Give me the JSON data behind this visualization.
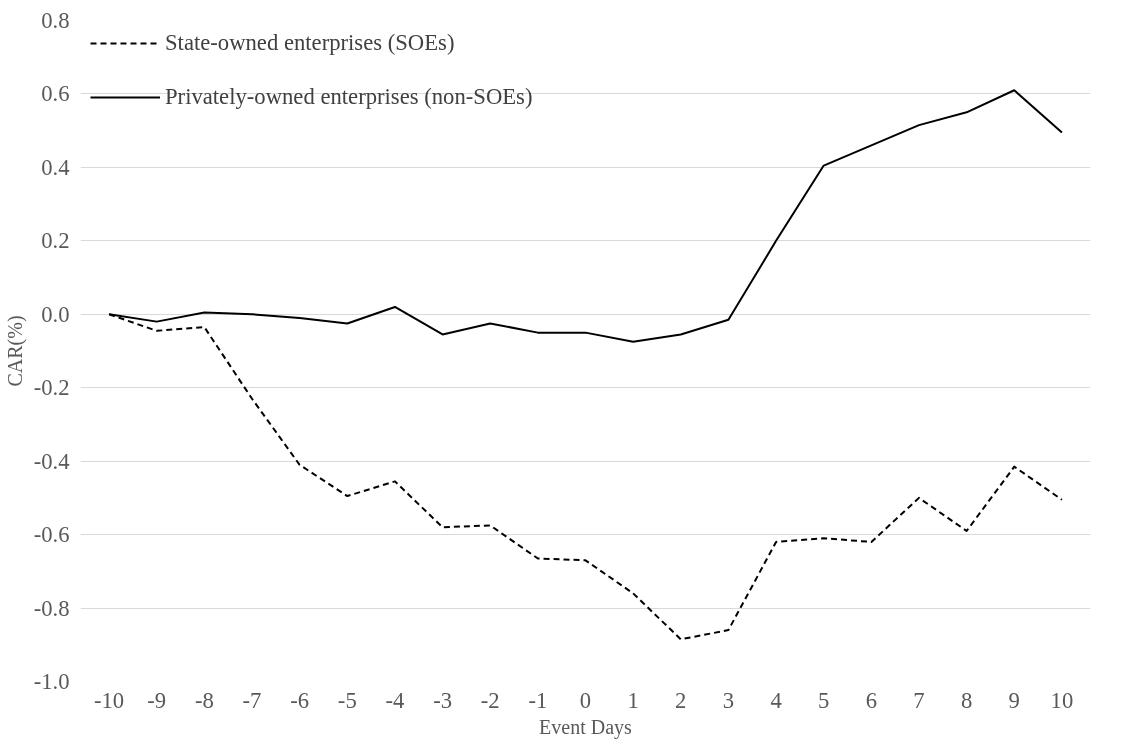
{
  "chart_data": {
    "type": "line",
    "xlabel": "Event Days",
    "ylabel": "CAR(%)",
    "categories": [
      "-10",
      "-9",
      "-8",
      "-7",
      "-6",
      "-5",
      "-4",
      "-3",
      "-2",
      "-1",
      "0",
      "1",
      "2",
      "3",
      "4",
      "5",
      "6",
      "7",
      "8",
      "9",
      "10"
    ],
    "series": [
      {
        "name": "State-owned enterprises (SOEs)",
        "color": "#000000",
        "line_style": "dashed",
        "values": [
          0,
          -0.045,
          -0.035,
          -0.23,
          -0.41,
          -0.495,
          -0.455,
          -0.58,
          -0.575,
          -0.665,
          -0.67,
          -0.76,
          -0.885,
          -0.86,
          -0.62,
          -0.61,
          -0.62,
          -0.5,
          -0.59,
          -0.415,
          -0.505
        ]
      },
      {
        "name": "Privately-owned enterprises (non-SOEs)",
        "color": "#000000",
        "line_style": "solid",
        "values": [
          0,
          -0.02,
          0.005,
          0,
          -0.01,
          -0.025,
          0.02,
          -0.055,
          -0.025,
          -0.05,
          -0.05,
          -0.075,
          -0.055,
          -0.015,
          0.2,
          0.405,
          0.46,
          0.515,
          0.55,
          0.61,
          0.495
        ]
      }
    ],
    "ylim": [
      -1.0,
      0.8
    ],
    "yticks": [
      {
        "value": -1.0,
        "label": "-1.0"
      },
      -0.8,
      -0.6,
      -0.4,
      -0.2,
      {
        "value": 0,
        "label": "0.0"
      },
      0.2,
      0.4,
      0.6,
      0.8
    ],
    "grid": "y",
    "legend": "top left",
    "marker": "none"
  }
}
